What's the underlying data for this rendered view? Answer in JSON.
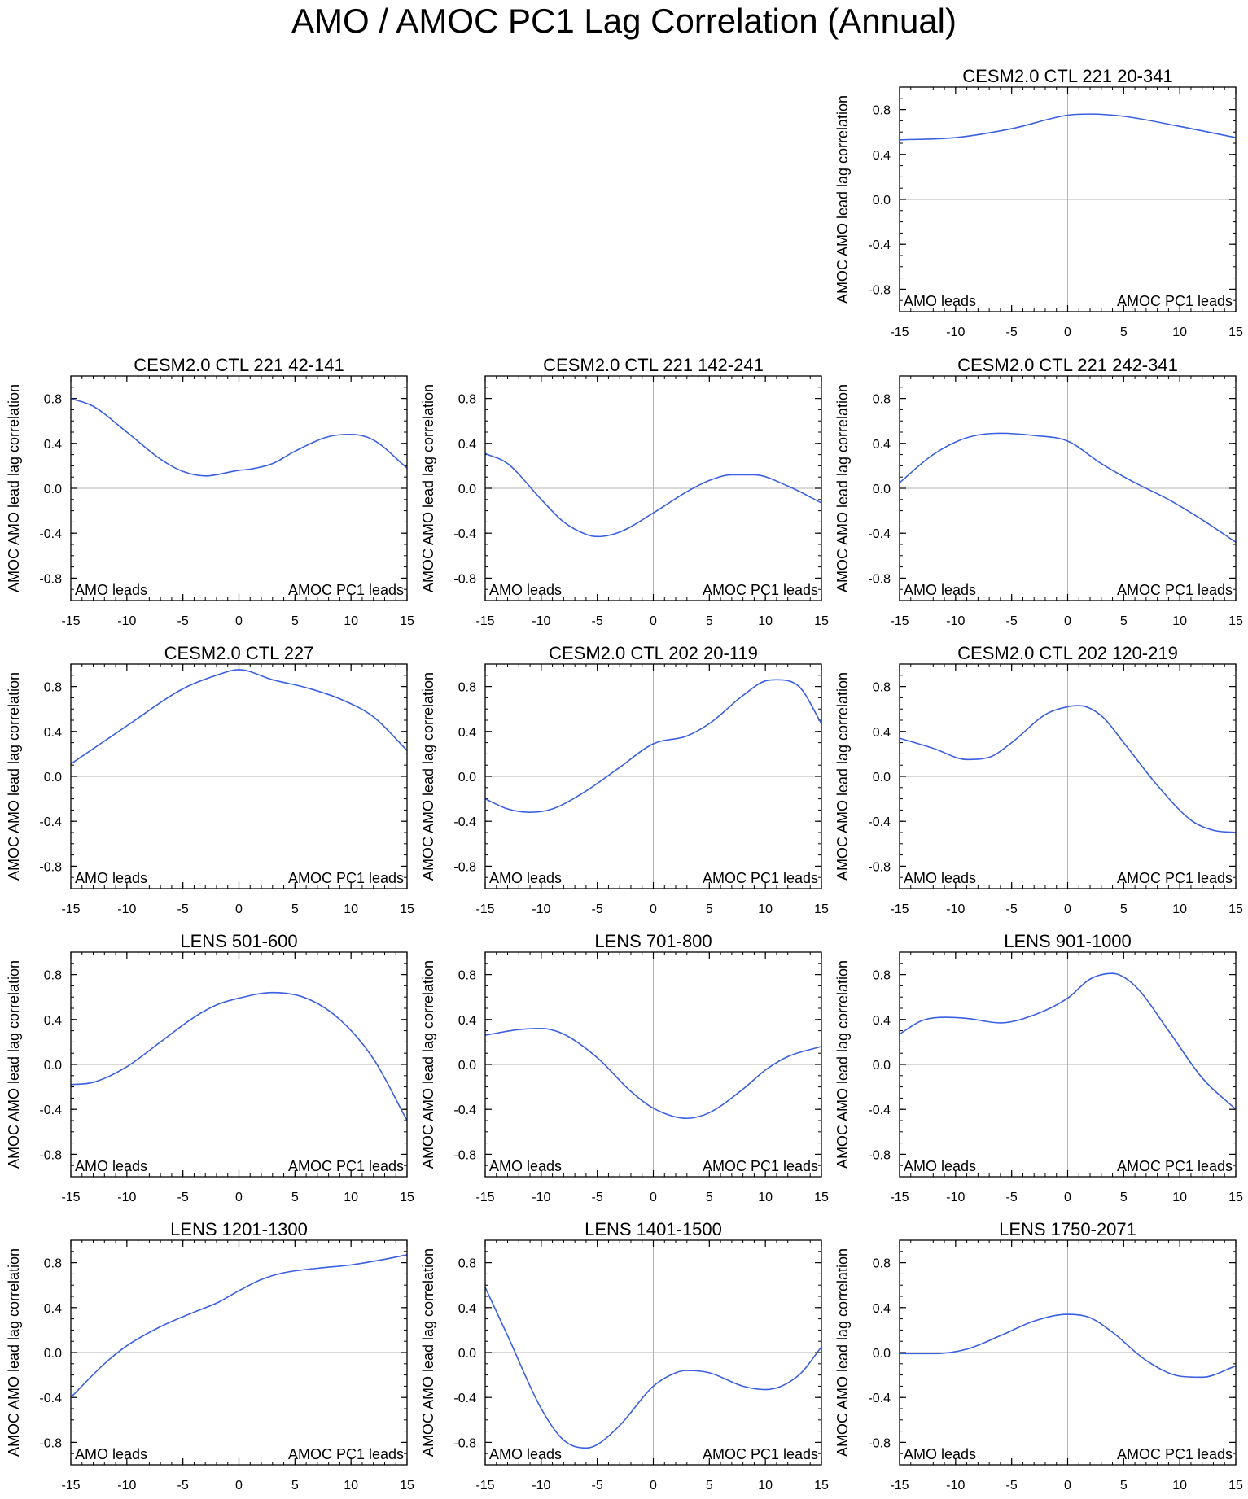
{
  "figure": {
    "title": "AMO / AMOC PC1 Lag Correlation (Annual)",
    "y_axis_label": "AMOC AMO lead lag correlation",
    "left_annotation": "AMO leads",
    "right_annotation": "AMOC PC1 leads",
    "line_color": "#3a5fe0",
    "grid_color": "#b3b3b3"
  },
  "chart_data": [
    {
      "type": "line",
      "title": "CESM2.0 CTL 221 20-341",
      "xlim": [
        -15,
        15
      ],
      "ylim": [
        -1,
        1
      ],
      "xticks": [
        -15,
        -10,
        -5,
        0,
        5,
        10,
        15
      ],
      "xtick_labels": [
        "-15",
        "-10",
        "-5",
        "0",
        "5",
        "10",
        "15"
      ],
      "yticks": [
        0.8,
        0.4,
        0.0,
        -0.4,
        -0.8
      ],
      "ytick_labels": [
        "0.8",
        "0.4",
        "0.0",
        "-0.4",
        "-0.8"
      ],
      "x": [
        -15,
        -10,
        -5,
        0,
        2,
        5,
        10,
        15
      ],
      "y": [
        0.53,
        0.55,
        0.63,
        0.75,
        0.76,
        0.74,
        0.65,
        0.55
      ]
    },
    {
      "type": "line",
      "title": "CESM2.0 CTL 221 42-141",
      "xlim": [
        -15,
        15
      ],
      "ylim": [
        -1,
        1
      ],
      "xticks": [
        -15,
        -10,
        -5,
        0,
        5,
        10,
        15
      ],
      "xtick_labels": [
        "-15",
        "-10",
        "-5",
        "0",
        "5",
        "10",
        "15"
      ],
      "yticks": [
        0.8,
        0.4,
        0.0,
        -0.4,
        -0.8
      ],
      "ytick_labels": [
        "0.8",
        "0.4",
        "0.0",
        "-0.4",
        "-0.8"
      ],
      "x": [
        -15,
        -13,
        -10,
        -7,
        -5,
        -3,
        0,
        1,
        3,
        5,
        8,
        10,
        12,
        15
      ],
      "y": [
        0.8,
        0.73,
        0.5,
        0.26,
        0.15,
        0.11,
        0.16,
        0.17,
        0.22,
        0.33,
        0.46,
        0.48,
        0.43,
        0.18
      ]
    },
    {
      "type": "line",
      "title": "CESM2.0 CTL 221 142-241",
      "xlim": [
        -15,
        15
      ],
      "ylim": [
        -1,
        1
      ],
      "xticks": [
        -15,
        -10,
        -5,
        0,
        5,
        10,
        15
      ],
      "xtick_labels": [
        "-15",
        "-10",
        "-5",
        "0",
        "5",
        "10",
        "15"
      ],
      "yticks": [
        0.8,
        0.4,
        0.0,
        -0.4,
        -0.8
      ],
      "ytick_labels": [
        "0.8",
        "0.4",
        "0.0",
        "-0.4",
        "-0.8"
      ],
      "x": [
        -15,
        -13,
        -10,
        -8,
        -6,
        -5,
        -3,
        0,
        3,
        5,
        7,
        9,
        12,
        15
      ],
      "y": [
        0.31,
        0.22,
        -0.1,
        -0.3,
        -0.41,
        -0.43,
        -0.39,
        -0.22,
        -0.03,
        0.07,
        0.12,
        0.12,
        0.02,
        -0.13
      ]
    },
    {
      "type": "line",
      "title": "CESM2.0 CTL 221 242-341",
      "xlim": [
        -15,
        15
      ],
      "ylim": [
        -1,
        1
      ],
      "xticks": [
        -15,
        -10,
        -5,
        0,
        5,
        10,
        15
      ],
      "xtick_labels": [
        "-15",
        "-10",
        "-5",
        "0",
        "5",
        "10",
        "15"
      ],
      "yticks": [
        0.8,
        0.4,
        0.0,
        -0.4,
        -0.8
      ],
      "ytick_labels": [
        "0.8",
        "0.4",
        "0.0",
        "-0.4",
        "-0.8"
      ],
      "x": [
        -15,
        -12,
        -9,
        -6,
        -3,
        0,
        3,
        6,
        9,
        12,
        15
      ],
      "y": [
        0.05,
        0.3,
        0.45,
        0.49,
        0.47,
        0.42,
        0.22,
        0.05,
        -0.1,
        -0.28,
        -0.48
      ]
    },
    {
      "type": "line",
      "title": "CESM2.0 CTL 227",
      "xlim": [
        -15,
        15
      ],
      "ylim": [
        -1,
        1
      ],
      "xticks": [
        -15,
        -10,
        -5,
        0,
        5,
        10,
        15
      ],
      "xtick_labels": [
        "-15",
        "-10",
        "-5",
        "0",
        "5",
        "10",
        "15"
      ],
      "yticks": [
        0.8,
        0.4,
        0.0,
        -0.4,
        -0.8
      ],
      "ytick_labels": [
        "0.8",
        "0.4",
        "0.0",
        "-0.4",
        "-0.8"
      ],
      "x": [
        -15,
        -10,
        -5,
        -2,
        0,
        3,
        6,
        9,
        12,
        15
      ],
      "y": [
        0.11,
        0.45,
        0.78,
        0.9,
        0.95,
        0.86,
        0.79,
        0.69,
        0.53,
        0.23
      ]
    },
    {
      "type": "line",
      "title": "CESM2.0 CTL 202 20-119",
      "xlim": [
        -15,
        15
      ],
      "ylim": [
        -1,
        1
      ],
      "xticks": [
        -15,
        -10,
        -5,
        0,
        5,
        10,
        15
      ],
      "xtick_labels": [
        "-15",
        "-10",
        "-5",
        "0",
        "5",
        "10",
        "15"
      ],
      "yticks": [
        0.8,
        0.4,
        0.0,
        -0.4,
        -0.8
      ],
      "ytick_labels": [
        "0.8",
        "0.4",
        "0.0",
        "-0.4",
        "-0.8"
      ],
      "x": [
        -15,
        -13,
        -11,
        -9,
        -6,
        -3,
        0,
        3,
        5,
        8,
        10,
        11,
        13,
        15
      ],
      "y": [
        -0.2,
        -0.29,
        -0.32,
        -0.29,
        -0.13,
        0.08,
        0.29,
        0.36,
        0.47,
        0.72,
        0.85,
        0.86,
        0.8,
        0.47
      ]
    },
    {
      "type": "line",
      "title": "CESM2.0 CTL 202 120-219",
      "xlim": [
        -15,
        15
      ],
      "ylim": [
        -1,
        1
      ],
      "xticks": [
        -15,
        -10,
        -5,
        0,
        5,
        10,
        15
      ],
      "xtick_labels": [
        "-15",
        "-10",
        "-5",
        "0",
        "5",
        "10",
        "15"
      ],
      "yticks": [
        0.8,
        0.4,
        0.0,
        -0.4,
        -0.8
      ],
      "ytick_labels": [
        "0.8",
        "0.4",
        "0.0",
        "-0.4",
        "-0.8"
      ],
      "x": [
        -15,
        -12,
        -9,
        -7,
        -5,
        -2,
        0,
        1,
        3,
        5,
        8,
        11,
        13,
        15
      ],
      "y": [
        0.34,
        0.25,
        0.15,
        0.17,
        0.3,
        0.55,
        0.62,
        0.63,
        0.54,
        0.3,
        -0.08,
        -0.39,
        -0.48,
        -0.5
      ]
    },
    {
      "type": "line",
      "title": "LENS 501-600",
      "xlim": [
        -15,
        15
      ],
      "ylim": [
        -1,
        1
      ],
      "xticks": [
        -15,
        -10,
        -5,
        0,
        5,
        10,
        15
      ],
      "xtick_labels": [
        "-15",
        "-10",
        "-5",
        "0",
        "5",
        "10",
        "15"
      ],
      "yticks": [
        0.8,
        0.4,
        0.0,
        -0.4,
        -0.8
      ],
      "ytick_labels": [
        "0.8",
        "0.4",
        "0.0",
        "-0.4",
        "-0.8"
      ],
      "x": [
        -15,
        -13,
        -10,
        -7,
        -4,
        -2,
        0,
        3,
        6,
        9,
        12,
        15
      ],
      "y": [
        -0.18,
        -0.16,
        -0.02,
        0.2,
        0.42,
        0.53,
        0.59,
        0.64,
        0.59,
        0.4,
        0.05,
        -0.5
      ]
    },
    {
      "type": "line",
      "title": "LENS 701-800",
      "xlim": [
        -15,
        15
      ],
      "ylim": [
        -1,
        1
      ],
      "xticks": [
        -15,
        -10,
        -5,
        0,
        5,
        10,
        15
      ],
      "xtick_labels": [
        "-15",
        "-10",
        "-5",
        "0",
        "5",
        "10",
        "15"
      ],
      "yticks": [
        0.8,
        0.4,
        0.0,
        -0.4,
        -0.8
      ],
      "ytick_labels": [
        "0.8",
        "0.4",
        "0.0",
        "-0.4",
        "-0.8"
      ],
      "x": [
        -15,
        -12,
        -10,
        -8,
        -5,
        -2,
        0,
        3,
        5,
        8,
        10,
        12,
        15
      ],
      "y": [
        0.26,
        0.31,
        0.32,
        0.27,
        0.06,
        -0.24,
        -0.39,
        -0.48,
        -0.43,
        -0.22,
        -0.05,
        0.07,
        0.16
      ]
    },
    {
      "type": "line",
      "title": "LENS 901-1000",
      "xlim": [
        -15,
        15
      ],
      "ylim": [
        -1,
        1
      ],
      "xticks": [
        -15,
        -10,
        -5,
        0,
        5,
        10,
        15
      ],
      "xtick_labels": [
        "-15",
        "-10",
        "-5",
        "0",
        "5",
        "10",
        "15"
      ],
      "yticks": [
        0.8,
        0.4,
        0.0,
        -0.4,
        -0.8
      ],
      "ytick_labels": [
        "0.8",
        "0.4",
        "0.0",
        "-0.4",
        "-0.8"
      ],
      "x": [
        -15,
        -13,
        -11,
        -9,
        -6,
        -3,
        0,
        2,
        4,
        6,
        9,
        12,
        15
      ],
      "y": [
        0.27,
        0.39,
        0.42,
        0.41,
        0.37,
        0.44,
        0.59,
        0.76,
        0.81,
        0.7,
        0.3,
        -0.12,
        -0.4
      ]
    },
    {
      "type": "line",
      "title": "LENS 1201-1300",
      "xlim": [
        -15,
        15
      ],
      "ylim": [
        -1,
        1
      ],
      "xticks": [
        -15,
        -10,
        -5,
        0,
        5,
        10,
        15
      ],
      "xtick_labels": [
        "-15",
        "-10",
        "-5",
        "0",
        "5",
        "10",
        "15"
      ],
      "yticks": [
        0.8,
        0.4,
        0.0,
        -0.4,
        -0.8
      ],
      "ytick_labels": [
        "0.8",
        "0.4",
        "0.0",
        "-0.4",
        "-0.8"
      ],
      "x": [
        -15,
        -12,
        -10,
        -7,
        -4,
        -2,
        0,
        2,
        4,
        7,
        10,
        13,
        15
      ],
      "y": [
        -0.4,
        -0.1,
        0.06,
        0.23,
        0.36,
        0.44,
        0.55,
        0.65,
        0.71,
        0.75,
        0.78,
        0.83,
        0.87
      ]
    },
    {
      "type": "line",
      "title": "LENS 1401-1500",
      "xlim": [
        -15,
        15
      ],
      "ylim": [
        -1,
        1
      ],
      "xticks": [
        -15,
        -10,
        -5,
        0,
        5,
        10,
        15
      ],
      "xtick_labels": [
        "-15",
        "-10",
        "-5",
        "0",
        "5",
        "10",
        "15"
      ],
      "yticks": [
        0.8,
        0.4,
        0.0,
        -0.4,
        -0.8
      ],
      "ytick_labels": [
        "0.8",
        "0.4",
        "0.0",
        "-0.4",
        "-0.8"
      ],
      "x": [
        -15,
        -13,
        -10,
        -8,
        -6,
        -5,
        -3,
        0,
        2,
        3,
        5,
        8,
        10,
        13,
        15
      ],
      "y": [
        0.58,
        0.15,
        -0.5,
        -0.78,
        -0.85,
        -0.82,
        -0.65,
        -0.3,
        -0.18,
        -0.16,
        -0.18,
        -0.3,
        -0.33,
        -0.2,
        0.05
      ]
    },
    {
      "type": "line",
      "title": "LENS 1750-2071",
      "xlim": [
        -15,
        15
      ],
      "ylim": [
        -1,
        1
      ],
      "xticks": [
        -15,
        -10,
        -5,
        0,
        5,
        10,
        15
      ],
      "xtick_labels": [
        "-15",
        "-10",
        "-5",
        "0",
        "5",
        "10",
        "15"
      ],
      "yticks": [
        0.8,
        0.4,
        0.0,
        -0.4,
        -0.8
      ],
      "ytick_labels": [
        "0.8",
        "0.4",
        "0.0",
        "-0.4",
        "-0.8"
      ],
      "x": [
        -15,
        -12,
        -9,
        -6,
        -3,
        0,
        2,
        4,
        7,
        10,
        12,
        15
      ],
      "y": [
        -0.01,
        -0.01,
        0.03,
        0.15,
        0.28,
        0.34,
        0.31,
        0.18,
        -0.07,
        -0.21,
        -0.22,
        -0.12
      ]
    }
  ]
}
